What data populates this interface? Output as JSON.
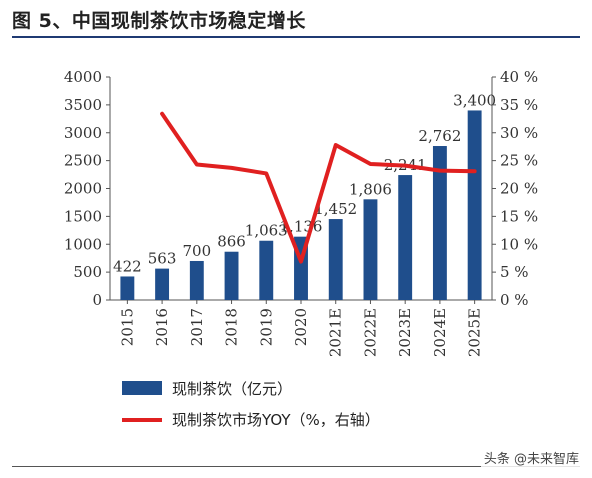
{
  "figure": {
    "title": "图 5、中国现制茶饮市场稳定增长",
    "watermark": "头条 @未来智库"
  },
  "chart_data": {
    "type": "bar+line",
    "title": "图 5、中国现制茶饮市场稳定增长",
    "categories": [
      "2015",
      "2016",
      "2017",
      "2018",
      "2019",
      "2020",
      "2021E",
      "2022E",
      "2023E",
      "2024E",
      "2025E"
    ],
    "series": [
      {
        "name": "现制茶饮（亿元）",
        "type": "bar",
        "axis": "left",
        "color": "#1f4e8c",
        "values": [
          422,
          563,
          700,
          866,
          1063,
          1136,
          1452,
          1806,
          2241,
          2762,
          3400
        ],
        "labels": [
          "422",
          "563",
          "700",
          "866",
          "1,063",
          "1,136",
          "1,452",
          "1,806",
          "2,241",
          "2,762",
          "3,400"
        ]
      },
      {
        "name": "现制茶饮市场YOY（%，右轴）",
        "type": "line",
        "axis": "right",
        "color": "#e02020",
        "values": [
          null,
          33.4,
          24.3,
          23.7,
          22.7,
          6.9,
          27.8,
          24.4,
          24.1,
          23.2,
          23.1
        ]
      }
    ],
    "y_left": {
      "min": 0,
      "max": 4000,
      "step": 500,
      "ticks": [
        "0",
        "500",
        "1000",
        "1500",
        "2000",
        "2500",
        "3000",
        "3500",
        "4000"
      ]
    },
    "y_right": {
      "min": 0,
      "max": 40,
      "step": 5,
      "ticks": [
        "0 %",
        "5 %",
        "10 %",
        "15 %",
        "20 %",
        "25 %",
        "30 %",
        "35 %",
        "40 %"
      ]
    },
    "grid": false,
    "legend_position": "bottom-left"
  }
}
